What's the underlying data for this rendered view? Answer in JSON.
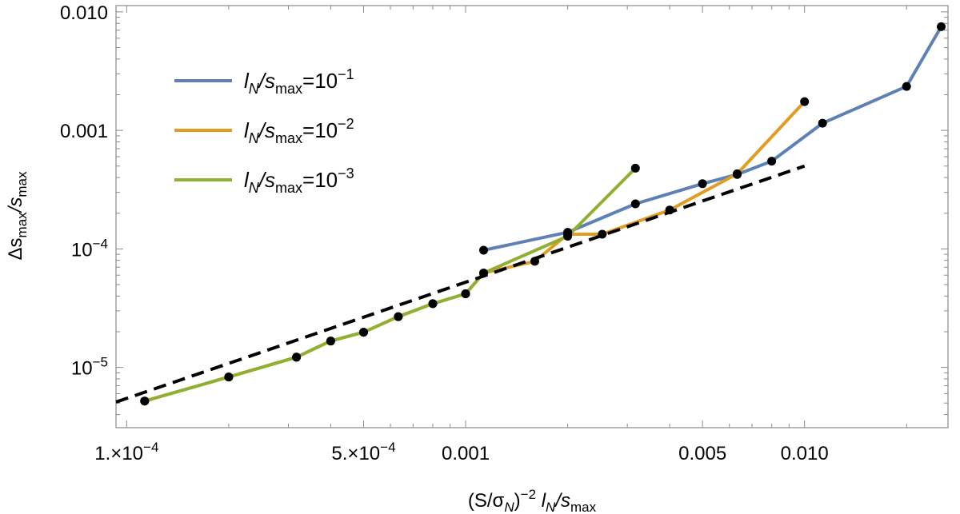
{
  "chart_data": {
    "type": "line",
    "xscale": "log",
    "yscale": "log",
    "xlim": [
      9.3e-05,
      0.0265
    ],
    "ylim": [
      3.1e-06,
      0.0113
    ],
    "xlabel": {
      "base": "(S/σ",
      "sub1": "N",
      "mid": ")",
      "sup": "−2",
      "var": " l",
      "sub2": "N",
      "slash": "/s",
      "sub3": "max"
    },
    "ylabel": {
      "pre": "Δs",
      "sub1": "max",
      "slash": "/s",
      "sub2": "max"
    },
    "x_ticks": [
      {
        "value": 0.0001,
        "label": "1.×10",
        "exp": "−4"
      },
      {
        "value": 0.0005,
        "label": "5.×10",
        "exp": "−4"
      },
      {
        "value": 0.001,
        "label": "0.001",
        "exp": ""
      },
      {
        "value": 0.005,
        "label": "0.005",
        "exp": ""
      },
      {
        "value": 0.01,
        "label": "0.010",
        "exp": ""
      }
    ],
    "y_ticks": [
      {
        "value": 1e-05,
        "label": "10",
        "exp": "−5"
      },
      {
        "value": 0.0001,
        "label": "10",
        "exp": "−4"
      },
      {
        "value": 0.001,
        "label": "0.001",
        "exp": ""
      },
      {
        "value": 0.01,
        "label": "0.010",
        "exp": ""
      }
    ],
    "series": [
      {
        "name": "lN/smax=10^-1",
        "legend": {
          "var": "l",
          "sub": "N",
          "mid": "/s",
          "sub2": "max",
          "eq": "=10",
          "exp": "−1"
        },
        "color": "#5e81b5",
        "points": [
          [
            0.00113,
            9.75e-05
          ],
          [
            0.002,
            0.000138
          ],
          [
            0.00317,
            0.00024
          ],
          [
            0.005,
            0.000355
          ],
          [
            0.00633,
            0.000425
          ],
          [
            0.008,
            0.00055
          ],
          [
            0.0113,
            0.00115
          ],
          [
            0.02,
            0.00235
          ],
          [
            0.0253,
            0.0075
          ]
        ]
      },
      {
        "name": "lN/smax=10^-2",
        "legend": {
          "var": "l",
          "sub": "N",
          "mid": "/s",
          "sub2": "max",
          "eq": "=10",
          "exp": "−2"
        },
        "color": "#e19c24",
        "points": [
          [
            0.000113,
            5.2e-06
          ],
          [
            0.0002,
            8.3e-06
          ],
          [
            0.000317,
            1.22e-05
          ],
          [
            0.0004,
            1.67e-05
          ],
          [
            0.0005,
            1.98e-05
          ],
          [
            0.000633,
            2.68e-05
          ],
          [
            0.0008,
            3.45e-05
          ],
          [
            0.001,
            4.18e-05
          ],
          [
            0.00113,
            6.25e-05
          ],
          [
            0.0016,
            7.85e-05
          ],
          [
            0.002,
            0.000133
          ],
          [
            0.00253,
            0.000133
          ],
          [
            0.004,
            0.000213
          ],
          [
            0.00633,
            0.00043
          ],
          [
            0.01,
            0.00175
          ]
        ]
      },
      {
        "name": "lN/smax=10^-3",
        "legend": {
          "var": "l",
          "sub": "N",
          "mid": "/s",
          "sub2": "max",
          "eq": "=10",
          "exp": "−3"
        },
        "color": "#8fb032",
        "points": [
          [
            0.000113,
            5.2e-06
          ],
          [
            0.0002,
            8.3e-06
          ],
          [
            0.000317,
            1.22e-05
          ],
          [
            0.0004,
            1.67e-05
          ],
          [
            0.0005,
            1.98e-05
          ],
          [
            0.000633,
            2.68e-05
          ],
          [
            0.0008,
            3.45e-05
          ],
          [
            0.001,
            4.18e-05
          ],
          [
            0.00113,
            6.25e-05
          ],
          [
            0.002,
            0.000128
          ],
          [
            0.00317,
            0.00048
          ]
        ]
      }
    ],
    "reference_line": {
      "name": "dashed fit",
      "color": "#000000",
      "points": [
        [
          9.3e-05,
          5.1e-06
        ],
        [
          0.01,
          0.0005
        ]
      ]
    }
  }
}
